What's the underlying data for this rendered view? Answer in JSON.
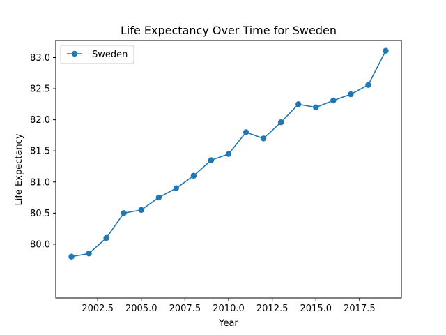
{
  "chart_data": {
    "type": "line",
    "title": "Life Expectancy Over Time for Sweden",
    "xlabel": "Year",
    "ylabel": "Life Expectancy",
    "xlim": [
      2000.1,
      2019.9
    ],
    "ylim": [
      79.135,
      83.275
    ],
    "xticks": [
      2002.5,
      2005.0,
      2007.5,
      2010.0,
      2012.5,
      2015.0,
      2017.5
    ],
    "xtick_labels": [
      "2002.5",
      "2005.0",
      "2007.5",
      "2010.0",
      "2012.5",
      "2015.0",
      "2017.5"
    ],
    "yticks": [
      80.0,
      80.5,
      81.0,
      81.5,
      82.0,
      82.5,
      83.0
    ],
    "ytick_labels": [
      "80.0",
      "80.5",
      "81.0",
      "81.5",
      "82.0",
      "82.5",
      "83.0"
    ],
    "grid": false,
    "legend_position": "top-left",
    "series": [
      {
        "name": "Sweden",
        "color": "#1f77b4",
        "marker": "circle",
        "x": [
          2001,
          2002,
          2003,
          2004,
          2005,
          2006,
          2007,
          2008,
          2009,
          2010,
          2011,
          2012,
          2013,
          2014,
          2015,
          2016,
          2017,
          2018,
          2019
        ],
        "y": [
          79.8,
          79.85,
          80.1,
          80.5,
          80.55,
          80.75,
          80.9,
          81.1,
          81.35,
          81.45,
          81.8,
          81.7,
          81.96,
          82.25,
          82.2,
          82.31,
          82.41,
          82.56,
          83.11
        ]
      }
    ]
  }
}
